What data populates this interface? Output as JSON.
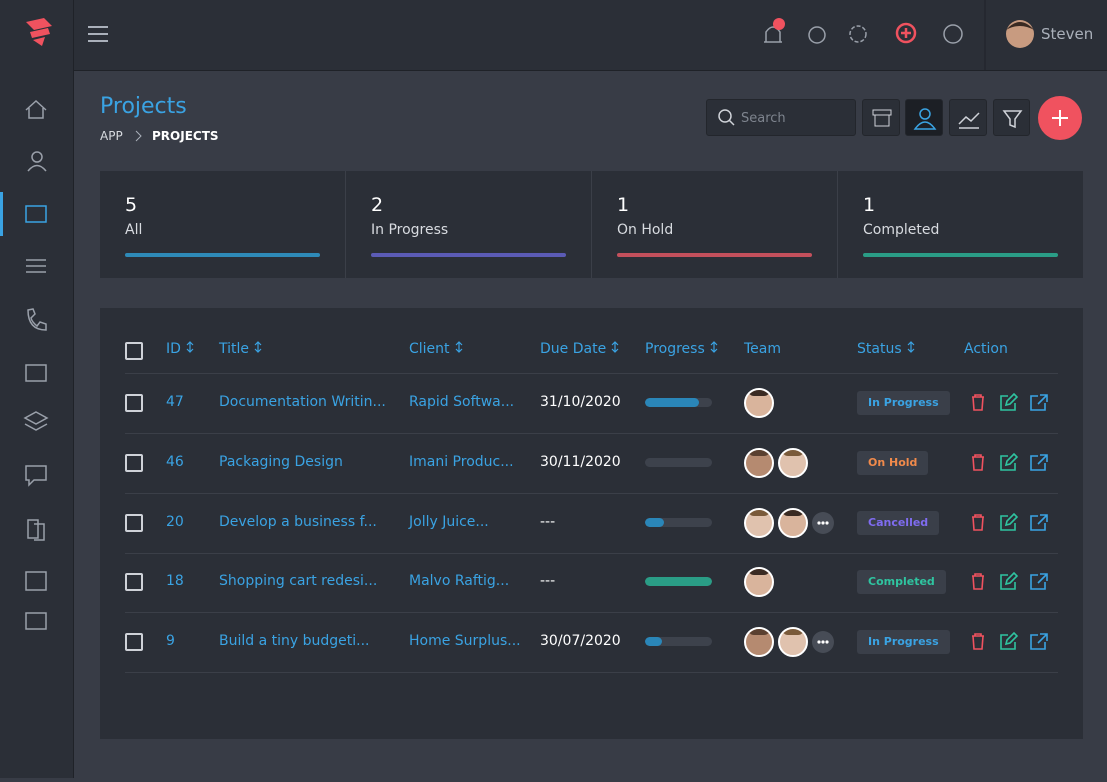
{
  "header": {
    "user": "Steven",
    "search_placeholder": "Search"
  },
  "page": {
    "title": "Projects",
    "breadcrumb": [
      "APP",
      "PROJECTS"
    ]
  },
  "summary": [
    {
      "count": 5,
      "label": "All",
      "color": "#2e8ab8"
    },
    {
      "count": 2,
      "label": "In Progress",
      "color": "#5b5bb5"
    },
    {
      "count": 1,
      "label": "On Hold",
      "color": "#c4505c"
    },
    {
      "count": 1,
      "label": "Completed",
      "color": "#2a9d86"
    }
  ],
  "table": {
    "columns": [
      {
        "label": "ID",
        "sortable": true
      },
      {
        "label": "Title",
        "sortable": true
      },
      {
        "label": "Client",
        "sortable": true
      },
      {
        "label": "Due Date",
        "sortable": true
      },
      {
        "label": "Progress",
        "sortable": true
      },
      {
        "label": "Team",
        "sortable": false
      },
      {
        "label": "Status",
        "sortable": true
      },
      {
        "label": "Action",
        "sortable": false
      }
    ],
    "status_colors": {
      "In Progress": "#3aa3e3",
      "On Hold": "#f08a4b",
      "Cancelled": "#7f6cf0",
      "Completed": "#2fc4a0"
    },
    "progress_colors": {
      "In Progress": "#2a86b8",
      "On Hold": "#2a86b8",
      "Cancelled": "#2a86b8",
      "Completed": "#2a9d86"
    },
    "rows": [
      {
        "id": 47,
        "title": "Documentation Writin...",
        "client": "Rapid Softwa...",
        "due": "31/10/2020",
        "progress": 80,
        "team": 1,
        "more": false,
        "status": "In Progress"
      },
      {
        "id": 46,
        "title": "Packaging Design",
        "client": "Imani Produc...",
        "due": "30/11/2020",
        "progress": 0,
        "team": 2,
        "more": false,
        "status": "On Hold"
      },
      {
        "id": 20,
        "title": "Develop a business f...",
        "client": "Jolly Juice...",
        "due": "---",
        "progress": 28,
        "team": 2,
        "more": true,
        "status": "Cancelled"
      },
      {
        "id": 18,
        "title": "Shopping cart redesi...",
        "client": "Malvo Raftig...",
        "due": "---",
        "progress": 100,
        "team": 1,
        "more": false,
        "status": "Completed"
      },
      {
        "id": 9,
        "title": "Build a tiny budgeti...",
        "client": "Home Surplus...",
        "due": "30/07/2020",
        "progress": 25,
        "team": 2,
        "more": true,
        "status": "In Progress"
      }
    ]
  }
}
